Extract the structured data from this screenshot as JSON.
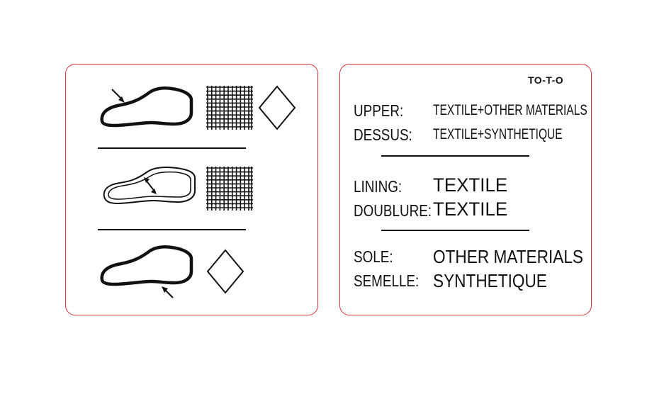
{
  "label": {
    "code": "TO-T-O",
    "upper": {
      "label": "UPPER:",
      "value": "TEXTILE+OTHER MATERIALS"
    },
    "dessus": {
      "label": "DESSUS:",
      "value": "TEXTILE+SYNTHETIQUE"
    },
    "lining": {
      "label": "LINING:",
      "value": "TEXTILE"
    },
    "doublure": {
      "label": "DOUBLURE:",
      "value": "TEXTILE"
    },
    "sole": {
      "label": "SOLE:",
      "value": "OTHER MATERIALS"
    },
    "semelle": {
      "label": "SEMELLE:",
      "value": "SYNTHETIQUE"
    }
  },
  "pictograms": {
    "rows": [
      {
        "part_icon": "shoe-upper-icon",
        "material_icons": [
          "textile-grid-icon",
          "other-materials-diamond-icon"
        ]
      },
      {
        "part_icon": "shoe-lining-icon",
        "material_icons": [
          "textile-grid-icon"
        ]
      },
      {
        "part_icon": "shoe-sole-icon",
        "material_icons": [
          "other-materials-diamond-icon"
        ]
      }
    ]
  },
  "colors": {
    "border": "#d8323c",
    "ink": "#111111",
    "background": "#ffffff"
  }
}
